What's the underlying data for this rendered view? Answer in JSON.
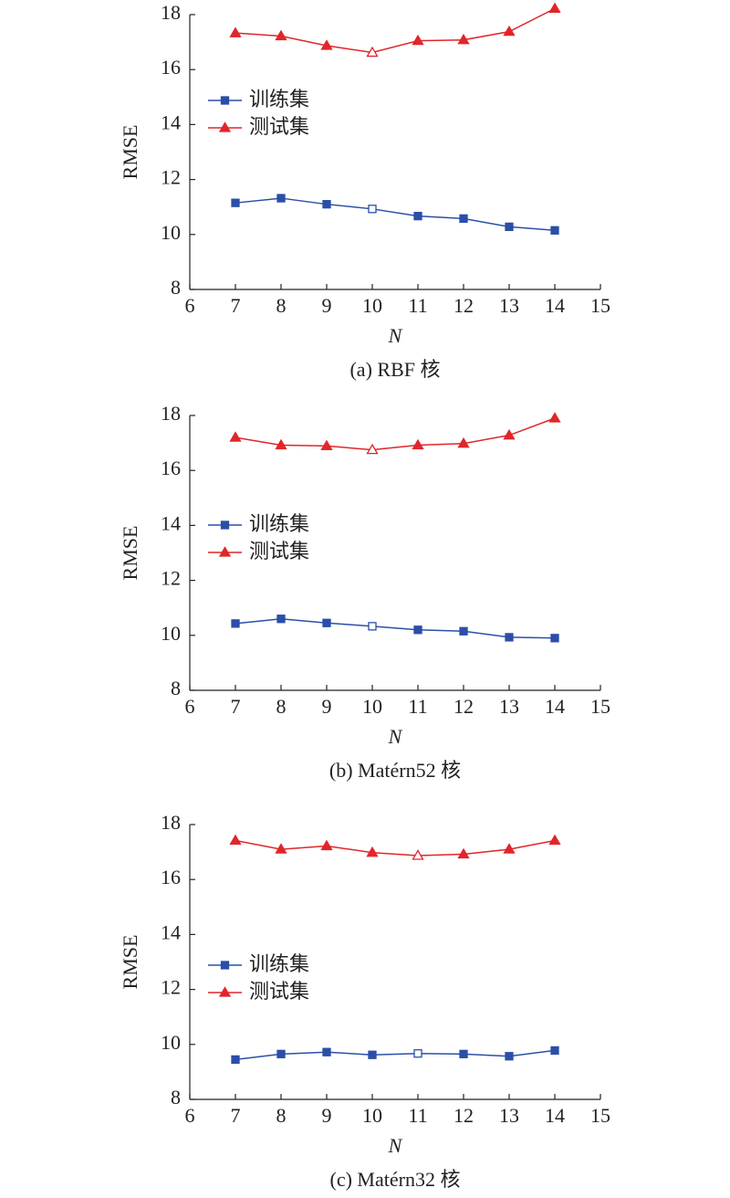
{
  "chart_data": [
    {
      "type": "line",
      "title": "(a) RBF 核",
      "xlabel": "N",
      "ylabel": "RMSE",
      "x": [
        7,
        8,
        9,
        10,
        11,
        12,
        13,
        14
      ],
      "series": [
        {
          "name": "训练集",
          "color": "#2b4fa8",
          "marker": "square",
          "values": [
            11.15,
            11.32,
            11.1,
            10.93,
            10.67,
            10.58,
            10.28,
            10.15
          ]
        },
        {
          "name": "测试集",
          "color": "#e0262a",
          "marker": "triangle",
          "values": [
            17.33,
            17.22,
            16.87,
            16.62,
            17.05,
            17.08,
            17.38,
            18.22
          ]
        }
      ],
      "open_marker_index": 3,
      "xlim": [
        6,
        15
      ],
      "xticks": [
        6,
        7,
        8,
        9,
        10,
        11,
        12,
        13,
        14,
        15
      ],
      "ylim": [
        8,
        18
      ],
      "yticks": [
        8,
        10,
        12,
        14,
        16,
        18
      ]
    },
    {
      "type": "line",
      "title": "(b) Matérn52 核",
      "xlabel": "N",
      "ylabel": "RMSE",
      "x": [
        7,
        8,
        9,
        10,
        11,
        12,
        13,
        14
      ],
      "series": [
        {
          "name": "训练集",
          "color": "#2b4fa8",
          "marker": "square",
          "values": [
            10.43,
            10.6,
            10.45,
            10.33,
            10.2,
            10.15,
            9.93,
            9.9
          ]
        },
        {
          "name": "测试集",
          "color": "#e0262a",
          "marker": "triangle",
          "values": [
            17.2,
            16.92,
            16.89,
            16.75,
            16.92,
            16.98,
            17.28,
            17.9
          ]
        }
      ],
      "open_marker_index": 3,
      "xlim": [
        6,
        15
      ],
      "xticks": [
        6,
        7,
        8,
        9,
        10,
        11,
        12,
        13,
        14,
        15
      ],
      "ylim": [
        8,
        18
      ],
      "yticks": [
        8,
        10,
        12,
        14,
        16,
        18
      ]
    },
    {
      "type": "line",
      "title": "(c) Matérn32 核",
      "xlabel": "N",
      "ylabel": "RMSE",
      "x": [
        7,
        8,
        9,
        10,
        11,
        12,
        13,
        14
      ],
      "series": [
        {
          "name": "训练集",
          "color": "#2b4fa8",
          "marker": "square",
          "values": [
            9.45,
            9.65,
            9.72,
            9.62,
            9.67,
            9.65,
            9.57,
            9.78
          ]
        },
        {
          "name": "测试集",
          "color": "#e0262a",
          "marker": "triangle",
          "values": [
            17.42,
            17.1,
            17.22,
            16.98,
            16.87,
            16.92,
            17.1,
            17.42
          ]
        }
      ],
      "open_marker_index": 4,
      "xlim": [
        6,
        15
      ],
      "xticks": [
        6,
        7,
        8,
        9,
        10,
        11,
        12,
        13,
        14,
        15
      ],
      "ylim": [
        8,
        18
      ],
      "yticks": [
        8,
        10,
        12,
        14,
        16,
        18
      ]
    }
  ]
}
